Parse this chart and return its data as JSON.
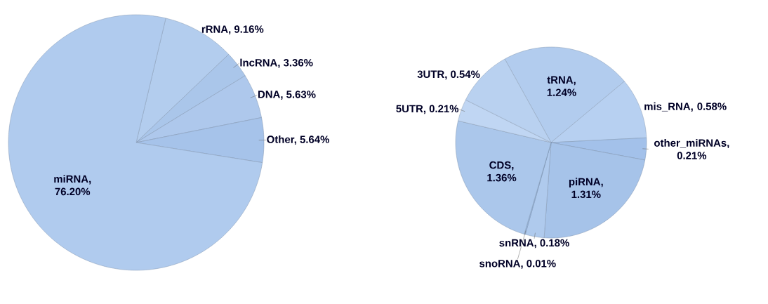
{
  "chart_data": [
    {
      "type": "pie",
      "categories": [
        "rRNA, 9.16%",
        "lncRNA, 3.36%",
        "DNA, 5.63%",
        "Other, 5.64%",
        "miRNA, 76.20%"
      ],
      "values": [
        9.16,
        3.36,
        5.63,
        5.64,
        76.2
      ],
      "colors": [
        "#b3cdee",
        "#aac6ea",
        "#aec8ec",
        "#a6c3ea",
        "#b0cbee"
      ]
    },
    {
      "type": "pie",
      "categories": [
        "tRNA, 1.24%",
        "mis_RNA, 0.58%",
        "other_miRNAs, 0.21%",
        "piRNA, 1.31%",
        "snRNA, 0.18%",
        "snoRNA, 0.01%",
        "CDS, 1.36%",
        "5UTR, 0.21%",
        "3UTR, 0.54%"
      ],
      "values": [
        1.24,
        0.58,
        0.21,
        1.31,
        0.18,
        0.01,
        1.36,
        0.21,
        0.54
      ],
      "colors": [
        "#b2ccee",
        "#b7d0f1",
        "#a3c1ea",
        "#a6c3e9",
        "#afcaed",
        "#9dbde8",
        "#abc7eb",
        "#c0d6f3",
        "#b9d1f0"
      ]
    }
  ]
}
